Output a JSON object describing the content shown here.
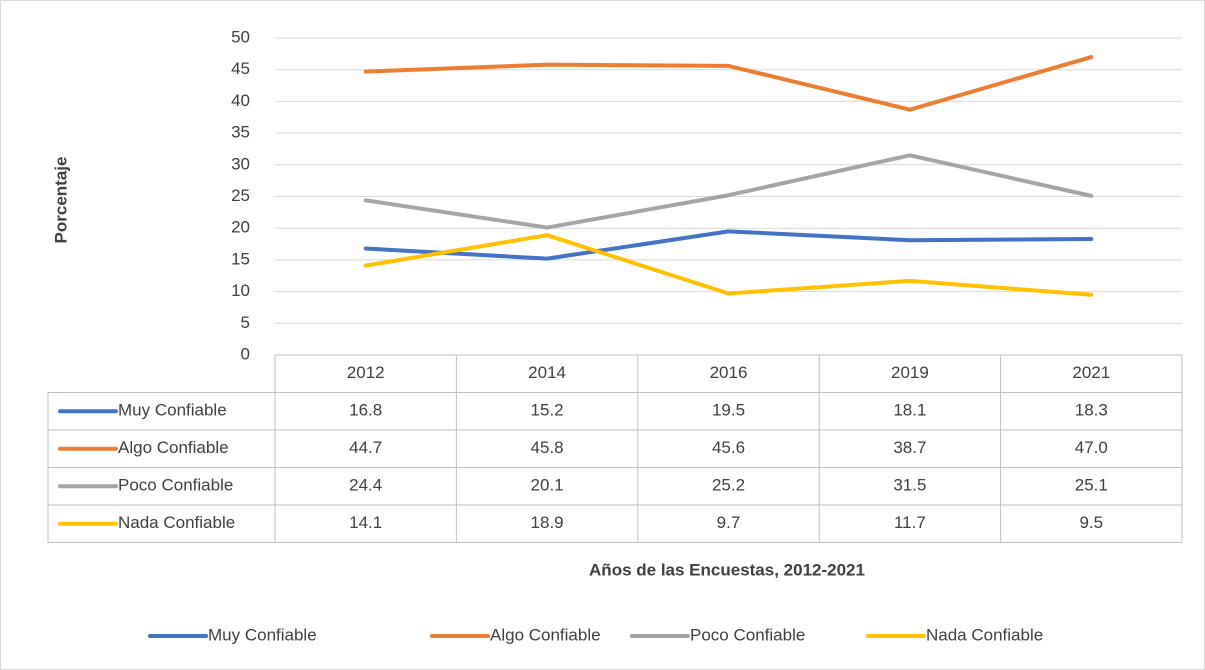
{
  "chart_data": {
    "type": "line",
    "y_label": "Porcentaje",
    "x_label": "Años de las Encuestas, 2012-2021",
    "categories": [
      "2012",
      "2014",
      "2016",
      "2019",
      "2021"
    ],
    "series": [
      {
        "name": "Muy Confiable",
        "color": "#4472c4",
        "values": [
          16.8,
          15.2,
          19.5,
          18.1,
          18.3
        ],
        "value_labels": [
          "16.8",
          "15.2",
          "19.5",
          "18.1",
          "18.3"
        ]
      },
      {
        "name": "Algo Confiable",
        "color": "#ed7d31",
        "values": [
          44.7,
          45.8,
          45.6,
          38.7,
          47
        ],
        "value_labels": [
          "44.7",
          "45.8",
          "45.6",
          "38.7",
          "47.0"
        ]
      },
      {
        "name": "Poco Confiable",
        "color": "#a5a5a5",
        "values": [
          24.4,
          20.1,
          25.2,
          31.5,
          25.1
        ],
        "value_labels": [
          "24.4",
          "20.1",
          "25.2",
          "31.5",
          "25.1"
        ]
      },
      {
        "name": "Nada Confiable",
        "color": "#ffc000",
        "values": [
          14.1,
          18.9,
          9.7,
          11.7,
          9.5
        ],
        "value_labels": [
          "14.1",
          "18.9",
          "9.7",
          "11.7",
          "9.5"
        ]
      }
    ],
    "ylim": [
      0,
      50
    ],
    "yticks": [
      0,
      5,
      10,
      15,
      20,
      25,
      30,
      35,
      40,
      45,
      50
    ],
    "grid": true,
    "legend": "bottom",
    "data_table": true
  }
}
